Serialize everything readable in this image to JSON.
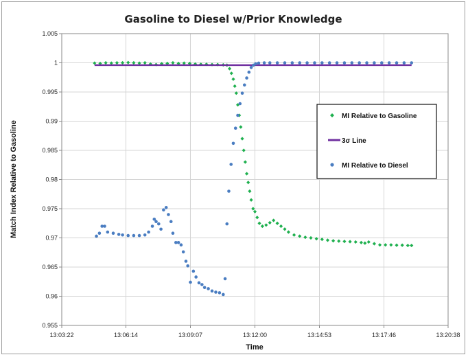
{
  "chart_data": {
    "type": "scatter",
    "title": "Gasoline to Diesel w/Prior Knowledge",
    "xlabel": "Time",
    "ylabel": "Match Index Relative to Gasoline",
    "x_tick_labels": [
      "13:03:22",
      "13:06:14",
      "13:09:07",
      "13:12:00",
      "13:14:53",
      "13:17:46",
      "13:20:38"
    ],
    "xlim": [
      "13:03:22",
      "13:20:38"
    ],
    "y_tick_labels": [
      "0.955",
      "0.96",
      "0.965",
      "0.97",
      "0.975",
      "0.98",
      "0.985",
      "0.99",
      "0.995",
      "1",
      "1.005"
    ],
    "ylim": [
      0.955,
      1.005
    ],
    "grid": true,
    "legend_position": "right",
    "series": [
      {
        "name": "MI Relative to Gasoline",
        "color": "#1fb04f",
        "marker": "diamond",
        "points": [
          [
            "13:04:50",
            0.99995
          ],
          [
            "13:05:05",
            0.9999
          ],
          [
            "13:05:20",
            1.0
          ],
          [
            "13:05:35",
            0.99995
          ],
          [
            "13:05:50",
            1.0
          ],
          [
            "13:06:05",
            1.0
          ],
          [
            "13:06:20",
            1.00005
          ],
          [
            "13:06:35",
            1.0
          ],
          [
            "13:06:50",
            0.99995
          ],
          [
            "13:07:05",
            1.0
          ],
          [
            "13:07:20",
            0.9998
          ],
          [
            "13:07:35",
            0.9997
          ],
          [
            "13:07:50",
            0.99985
          ],
          [
            "13:08:05",
            0.9999
          ],
          [
            "13:08:20",
            1.0
          ],
          [
            "13:08:35",
            0.9999
          ],
          [
            "13:08:50",
            0.99995
          ],
          [
            "13:09:05",
            0.9999
          ],
          [
            "13:09:20",
            0.9998
          ],
          [
            "13:09:35",
            0.99975
          ],
          [
            "13:09:50",
            0.99975
          ],
          [
            "13:10:05",
            0.9997
          ],
          [
            "13:10:20",
            0.9997
          ],
          [
            "13:10:35",
            0.99965
          ],
          [
            "13:10:45",
            0.9996
          ],
          [
            "13:10:52",
            0.999
          ],
          [
            "13:10:57",
            0.9982
          ],
          [
            "13:11:02",
            0.9972
          ],
          [
            "13:11:06",
            0.996
          ],
          [
            "13:11:10",
            0.9948
          ],
          [
            "13:11:14",
            0.9928
          ],
          [
            "13:11:18",
            0.991
          ],
          [
            "13:11:22",
            0.989
          ],
          [
            "13:11:26",
            0.987
          ],
          [
            "13:11:30",
            0.985
          ],
          [
            "13:11:34",
            0.983
          ],
          [
            "13:11:38",
            0.981
          ],
          [
            "13:11:42",
            0.9795
          ],
          [
            "13:11:46",
            0.978
          ],
          [
            "13:11:50",
            0.9765
          ],
          [
            "13:11:55",
            0.975
          ],
          [
            "13:12:00",
            0.9745
          ],
          [
            "13:12:06",
            0.9735
          ],
          [
            "13:12:12",
            0.9725
          ],
          [
            "13:12:20",
            0.972
          ],
          [
            "13:12:30",
            0.9722
          ],
          [
            "13:12:40",
            0.9726
          ],
          [
            "13:12:50",
            0.973
          ],
          [
            "13:13:00",
            0.9725
          ],
          [
            "13:13:10",
            0.972
          ],
          [
            "13:13:20",
            0.9715
          ],
          [
            "13:13:30",
            0.971
          ],
          [
            "13:13:45",
            0.9705
          ],
          [
            "13:14:00",
            0.9703
          ],
          [
            "13:14:15",
            0.9701
          ],
          [
            "13:14:30",
            0.97
          ],
          [
            "13:14:45",
            0.96985
          ],
          [
            "13:15:00",
            0.96975
          ],
          [
            "13:15:15",
            0.9696
          ],
          [
            "13:15:30",
            0.9695
          ],
          [
            "13:15:45",
            0.96945
          ],
          [
            "13:16:00",
            0.9694
          ],
          [
            "13:16:15",
            0.96935
          ],
          [
            "13:16:30",
            0.9693
          ],
          [
            "13:16:45",
            0.9692
          ],
          [
            "13:16:55",
            0.9691
          ],
          [
            "13:17:05",
            0.9693
          ],
          [
            "13:17:20",
            0.969
          ],
          [
            "13:17:35",
            0.9688
          ],
          [
            "13:17:50",
            0.9688
          ],
          [
            "13:18:05",
            0.9688
          ],
          [
            "13:18:20",
            0.96875
          ],
          [
            "13:18:35",
            0.96875
          ],
          [
            "13:18:50",
            0.9687
          ],
          [
            "13:19:00",
            0.9687
          ]
        ]
      },
      {
        "name": "3σ Line",
        "color": "#7030a0",
        "marker": "line",
        "points": [
          [
            "13:04:50",
            0.9996
          ],
          [
            "13:19:00",
            0.9996
          ]
        ]
      },
      {
        "name": "MI Relative to Diesel",
        "color": "#4a7dc1",
        "marker": "circle",
        "points": [
          [
            "13:04:55",
            0.9703
          ],
          [
            "13:05:03",
            0.9708
          ],
          [
            "13:05:10",
            0.972
          ],
          [
            "13:05:17",
            0.972
          ],
          [
            "13:05:25",
            0.971
          ],
          [
            "13:05:40",
            0.9708
          ],
          [
            "13:05:55",
            0.9706
          ],
          [
            "13:06:05",
            0.9705
          ],
          [
            "13:06:20",
            0.9704
          ],
          [
            "13:06:35",
            0.9704
          ],
          [
            "13:06:50",
            0.9704
          ],
          [
            "13:07:05",
            0.9705
          ],
          [
            "13:07:15",
            0.971
          ],
          [
            "13:07:25",
            0.972
          ],
          [
            "13:07:30",
            0.9732
          ],
          [
            "13:07:35",
            0.9728
          ],
          [
            "13:07:42",
            0.9724
          ],
          [
            "13:07:48",
            0.9715
          ],
          [
            "13:07:55",
            0.9748
          ],
          [
            "13:08:02",
            0.9752
          ],
          [
            "13:08:08",
            0.974
          ],
          [
            "13:08:15",
            0.9728
          ],
          [
            "13:08:20",
            0.9708
          ],
          [
            "13:08:28",
            0.9692
          ],
          [
            "13:08:35",
            0.9692
          ],
          [
            "13:08:42",
            0.9688
          ],
          [
            "13:08:48",
            0.9676
          ],
          [
            "13:08:55",
            0.966
          ],
          [
            "13:09:00",
            0.9652
          ],
          [
            "13:09:07",
            0.9624
          ],
          [
            "13:09:15",
            0.9643
          ],
          [
            "13:09:22",
            0.9633
          ],
          [
            "13:09:30",
            0.9623
          ],
          [
            "13:09:38",
            0.962
          ],
          [
            "13:09:45",
            0.9615
          ],
          [
            "13:09:55",
            0.9613
          ],
          [
            "13:10:05",
            0.9609
          ],
          [
            "13:10:15",
            0.9607
          ],
          [
            "13:10:25",
            0.9606
          ],
          [
            "13:10:35",
            0.9603
          ],
          [
            "13:10:40",
            0.963
          ],
          [
            "13:10:45",
            0.9724
          ],
          [
            "13:10:50",
            0.978
          ],
          [
            "13:10:56",
            0.9826
          ],
          [
            "13:11:02",
            0.9862
          ],
          [
            "13:11:08",
            0.9888
          ],
          [
            "13:11:14",
            0.991
          ],
          [
            "13:11:20",
            0.993
          ],
          [
            "13:11:26",
            0.9948
          ],
          [
            "13:11:32",
            0.9962
          ],
          [
            "13:11:38",
            0.9974
          ],
          [
            "13:11:44",
            0.9984
          ],
          [
            "13:11:50",
            0.9992
          ],
          [
            "13:11:56",
            0.9996
          ],
          [
            "13:12:02",
            0.99985
          ],
          [
            "13:12:10",
            0.99995
          ],
          [
            "13:12:25",
            1.0
          ],
          [
            "13:12:40",
            1.0
          ],
          [
            "13:13:00",
            1.0
          ],
          [
            "13:13:20",
            1.0
          ],
          [
            "13:13:40",
            1.0
          ],
          [
            "13:14:00",
            1.0
          ],
          [
            "13:14:20",
            1.0
          ],
          [
            "13:14:40",
            1.0
          ],
          [
            "13:15:00",
            1.0
          ],
          [
            "13:15:20",
            1.0
          ],
          [
            "13:15:40",
            1.0
          ],
          [
            "13:16:00",
            1.0
          ],
          [
            "13:16:20",
            1.0
          ],
          [
            "13:16:40",
            1.0
          ],
          [
            "13:17:00",
            1.0
          ],
          [
            "13:17:20",
            1.0
          ],
          [
            "13:17:40",
            1.0
          ],
          [
            "13:18:00",
            1.0
          ],
          [
            "13:18:20",
            1.0
          ],
          [
            "13:18:40",
            1.0
          ],
          [
            "13:19:00",
            1.0
          ]
        ]
      }
    ]
  }
}
